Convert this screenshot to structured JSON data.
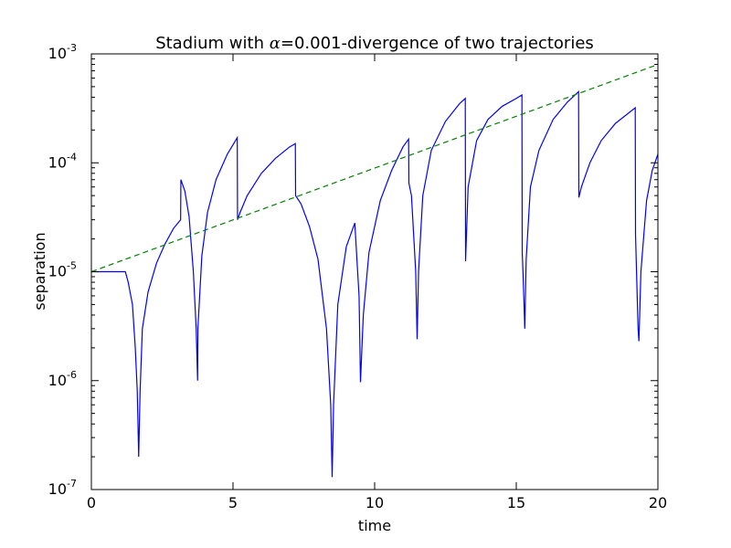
{
  "chart_data": {
    "type": "line",
    "title_prefix": "Stadium with ",
    "title_symbol": "α",
    "title_suffix": "=0.001-divergence of two trajectories",
    "xlabel": "time",
    "ylabel": "separation",
    "xlim": [
      0,
      20
    ],
    "ylim_exponent": [
      -7,
      -3
    ],
    "yscale": "log",
    "grid": false,
    "x_ticks": [
      {
        "value": 0,
        "label": "0"
      },
      {
        "value": 5,
        "label": "5"
      },
      {
        "value": 10,
        "label": "10"
      },
      {
        "value": 15,
        "label": "15"
      },
      {
        "value": 20,
        "label": "20"
      }
    ],
    "y_ticks": [
      {
        "exp": -7,
        "base": "10",
        "sup": "-7"
      },
      {
        "exp": -6,
        "base": "10",
        "sup": "-6"
      },
      {
        "exp": -5,
        "base": "10",
        "sup": "-5"
      },
      {
        "exp": -4,
        "base": "10",
        "sup": "-4"
      },
      {
        "exp": -3,
        "base": "10",
        "sup": "-3"
      }
    ],
    "series": [
      {
        "color": "#0000ff",
        "style": "solid",
        "x": [
          0,
          1.2,
          1.3,
          1.45,
          1.55,
          1.62,
          1.67,
          1.72,
          1.8,
          2.0,
          2.3,
          2.6,
          2.9,
          3.15,
          3.16,
          3.3,
          3.45,
          3.6,
          3.7,
          3.75,
          3.76,
          3.9,
          4.1,
          4.4,
          4.8,
          5.15,
          5.16,
          5.25,
          5.5,
          6.0,
          6.5,
          7.0,
          7.2,
          7.21,
          7.4,
          7.7,
          8.0,
          8.3,
          8.45,
          8.5,
          8.55,
          8.7,
          9.0,
          9.3,
          9.45,
          9.5,
          9.6,
          9.8,
          10.2,
          10.6,
          11.0,
          11.2,
          11.21,
          11.3,
          11.45,
          11.5,
          11.55,
          11.7,
          12.0,
          12.5,
          13.0,
          13.2,
          13.21,
          13.3,
          13.6,
          14.0,
          14.5,
          15.0,
          15.2,
          15.21,
          15.25,
          15.3,
          15.35,
          15.5,
          15.8,
          16.3,
          16.8,
          17.2,
          17.21,
          17.3,
          17.6,
          18.0,
          18.5,
          19.2,
          19.21,
          19.3,
          19.33,
          19.4,
          19.6,
          19.8,
          20.0
        ],
        "y": [
          1e-05,
          1e-05,
          8e-06,
          5e-06,
          2e-06,
          8e-07,
          2e-07,
          8e-07,
          3e-06,
          6.5e-06,
          1.2e-05,
          1.8e-05,
          2.5e-05,
          3e-05,
          7e-05,
          5.5e-05,
          3.2e-05,
          1e-05,
          3e-06,
          1e-06,
          3e-06,
          1.4e-05,
          3.5e-05,
          7e-05,
          0.00012,
          0.00017,
          3e-05,
          3.5e-05,
          5e-05,
          8e-05,
          0.00011,
          0.00014,
          0.00015,
          5e-05,
          4.2e-05,
          2.6e-05,
          1.3e-05,
          3e-06,
          6e-07,
          1.3e-07,
          6e-07,
          5e-06,
          1.7e-05,
          2.8e-05,
          6e-06,
          9.7e-07,
          4e-06,
          1.5e-05,
          4.5e-05,
          8.5e-05,
          0.00014,
          0.000165,
          6.5e-05,
          5e-05,
          1e-05,
          2.4e-06,
          1e-05,
          5e-05,
          0.00013,
          0.00024,
          0.00035,
          0.00039,
          1.25e-05,
          6e-05,
          0.00016,
          0.00025,
          0.00033,
          0.00039,
          0.00042,
          1.5e-05,
          8e-06,
          3e-06,
          1.3e-05,
          6e-05,
          0.00013,
          0.00025,
          0.00036,
          0.00045,
          4.8e-05,
          6e-05,
          0.0001,
          0.00016,
          0.00023,
          0.00032,
          2.2e-05,
          3e-06,
          2.3e-06,
          1e-05,
          4.5e-05,
          8.5e-05,
          0.00012
        ]
      },
      {
        "color": "#008000",
        "style": "dashed",
        "x": [
          0,
          20
        ],
        "y": [
          1e-05,
          0.0008
        ]
      }
    ]
  }
}
